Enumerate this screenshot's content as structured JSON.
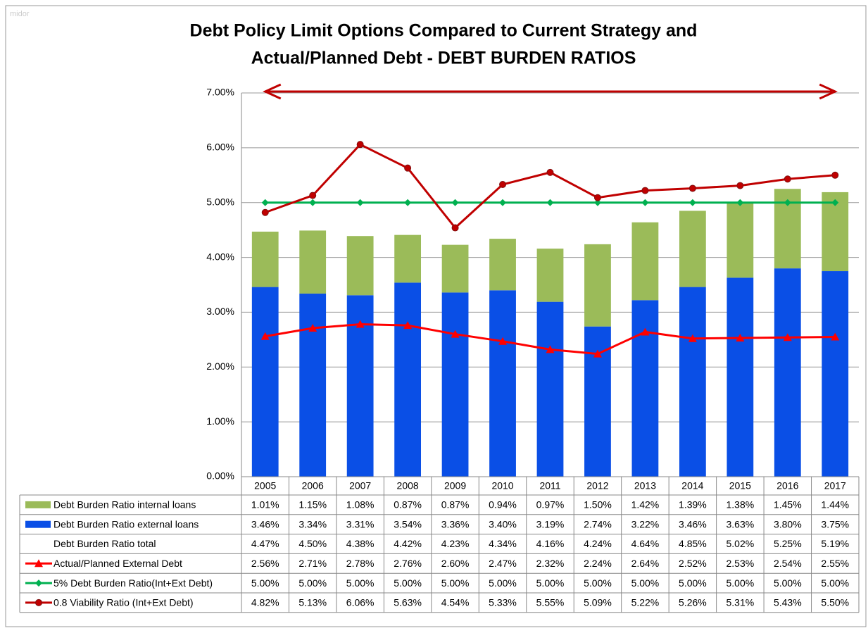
{
  "watermark": "midor",
  "chart_data": {
    "type": "bar-line-table",
    "title": [
      "Debt Policy Limit Options Compared to Current Strategy and",
      "Actual/Planned Debt - DEBT BURDEN RATIOS"
    ],
    "categories": [
      "2005",
      "2006",
      "2007",
      "2008",
      "2009",
      "2010",
      "2011",
      "2012",
      "2013",
      "2014",
      "2015",
      "2016",
      "2017"
    ],
    "ylim": [
      0,
      7
    ],
    "yticks": [
      {
        "value": 0,
        "label": "0.00%"
      },
      {
        "value": 1,
        "label": "1.00%"
      },
      {
        "value": 2,
        "label": "2.00%"
      },
      {
        "value": 3,
        "label": "3.00%"
      },
      {
        "value": 4,
        "label": "4.00%"
      },
      {
        "value": 5,
        "label": "5.00%"
      },
      {
        "value": 6,
        "label": "6.00%"
      },
      {
        "value": 7,
        "label": "7.00%"
      }
    ],
    "grid": true,
    "series": [
      {
        "name": "Debt Burden Ratio internal loans",
        "kind": "bar",
        "color": "#9bbb59",
        "values": [
          1.01,
          1.15,
          1.08,
          0.87,
          0.87,
          0.94,
          0.97,
          1.5,
          1.42,
          1.39,
          1.38,
          1.45,
          1.44
        ],
        "value_labels": [
          "1.01%",
          "1.15%",
          "1.08%",
          "0.87%",
          "0.87%",
          "0.94%",
          "0.97%",
          "1.50%",
          "1.42%",
          "1.39%",
          "1.38%",
          "1.45%",
          "1.44%"
        ]
      },
      {
        "name": "Debt Burden Ratio external loans",
        "kind": "bar",
        "color": "#0a4fe6",
        "values": [
          3.46,
          3.34,
          3.31,
          3.54,
          3.36,
          3.4,
          3.19,
          2.74,
          3.22,
          3.46,
          3.63,
          3.8,
          3.75
        ],
        "value_labels": [
          "3.46%",
          "3.34%",
          "3.31%",
          "3.54%",
          "3.36%",
          "3.40%",
          "3.19%",
          "2.74%",
          "3.22%",
          "3.46%",
          "3.63%",
          "3.80%",
          "3.75%"
        ]
      },
      {
        "name": "Debt Burden Ratio total",
        "values": [
          4.47,
          4.5,
          4.38,
          4.42,
          4.23,
          4.34,
          4.16,
          4.24,
          4.64,
          4.85,
          5.02,
          5.25,
          5.19
        ],
        "value_labels": [
          "4.47%",
          "4.50%",
          "4.38%",
          "4.42%",
          "4.23%",
          "4.34%",
          "4.16%",
          "4.24%",
          "4.64%",
          "4.85%",
          "5.02%",
          "5.25%",
          "5.19%"
        ]
      },
      {
        "name": "Actual/Planned External Debt",
        "kind": "line",
        "marker": "triangle",
        "color": "#ff0000",
        "values": [
          2.56,
          2.71,
          2.78,
          2.76,
          2.6,
          2.47,
          2.32,
          2.24,
          2.64,
          2.52,
          2.53,
          2.54,
          2.55
        ],
        "value_labels": [
          "2.56%",
          "2.71%",
          "2.78%",
          "2.76%",
          "2.60%",
          "2.47%",
          "2.32%",
          "2.24%",
          "2.64%",
          "2.52%",
          "2.53%",
          "2.54%",
          "2.55%"
        ]
      },
      {
        "name": "5% Debt Burden Ratio(Int+Ext Debt)",
        "kind": "line",
        "marker": "diamond",
        "color": "#00b050",
        "values": [
          5,
          5,
          5,
          5,
          5,
          5,
          5,
          5,
          5,
          5,
          5,
          5,
          5
        ],
        "value_labels": [
          "5.00%",
          "5.00%",
          "5.00%",
          "5.00%",
          "5.00%",
          "5.00%",
          "5.00%",
          "5.00%",
          "5.00%",
          "5.00%",
          "5.00%",
          "5.00%",
          "5.00%"
        ]
      },
      {
        "name": "0.8 Viability Ratio (Int+Ext Debt)",
        "kind": "line",
        "marker": "circle",
        "color": "#c00000",
        "values": [
          4.82,
          5.13,
          6.06,
          5.63,
          4.54,
          5.33,
          5.55,
          5.09,
          5.22,
          5.26,
          5.31,
          5.43,
          5.5
        ],
        "value_labels": [
          "4.82%",
          "5.13%",
          "6.06%",
          "5.63%",
          "4.54%",
          "5.33%",
          "5.55%",
          "5.09%",
          "5.22%",
          "5.26%",
          "5.31%",
          "5.43%",
          "5.50%"
        ]
      }
    ]
  }
}
